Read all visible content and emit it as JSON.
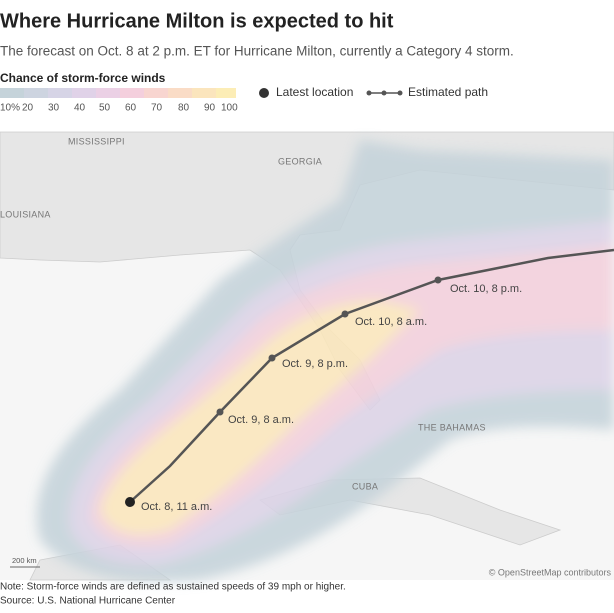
{
  "header": {
    "title": "Where Hurricane Milton is expected to hit",
    "subtitle": "The forecast on Oct. 8 at 2 p.m. ET for Hurricane Milton, currently a Category 4 storm."
  },
  "legend": {
    "title": "Chance of storm-force winds",
    "scale_labels": [
      "10%",
      "20",
      "30",
      "40",
      "50",
      "60",
      "70",
      "80",
      "90",
      "100"
    ],
    "latest_location": "Latest location",
    "estimated_path": "Estimated path"
  },
  "map": {
    "places": [
      "MISSISSIPPI",
      "GEORGIA",
      "LOUISIANA",
      "THE BAHAMAS",
      "CUBA"
    ],
    "path_labels": [
      "Oct. 8, 11 a.m.",
      "Oct. 9, 8 a.m.",
      "Oct. 9, 8 p.m.",
      "Oct. 10, 8 a.m.",
      "Oct. 10, 8 p.m."
    ],
    "scale": "200 km",
    "attribution": "© OpenStreetMap contributors"
  },
  "footer": {
    "note": "Note: Storm-force winds are defined as sustained speeds of 39 mph or higher.",
    "source": "Source: U.S. National Hurricane Center"
  }
}
